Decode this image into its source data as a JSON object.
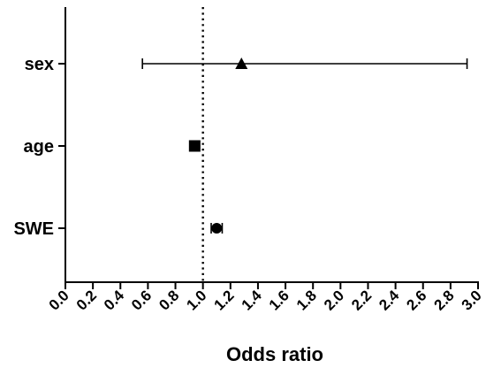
{
  "chart_data": {
    "type": "forest",
    "title": "",
    "xlabel": "Odds ratio",
    "ylabel": "",
    "xlim": [
      0.0,
      3.0
    ],
    "x_tick_step": 0.2,
    "x_tick_labels": [
      "0.0",
      "0.2",
      "0.4",
      "0.6",
      "0.8",
      "1.0",
      "1.2",
      "1.4",
      "1.6",
      "1.8",
      "2.0",
      "2.2",
      "2.4",
      "2.6",
      "2.8",
      "3.0"
    ],
    "reference_line": 1.0,
    "grid": false,
    "legend": "none",
    "categories": [
      "sex",
      "age",
      "SWE"
    ],
    "points": [
      {
        "label": "sex",
        "estimate": 1.28,
        "lower": 0.56,
        "upper": 2.92,
        "marker": "triangle"
      },
      {
        "label": "age",
        "estimate": 0.94,
        "lower": 0.92,
        "upper": 0.96,
        "marker": "square"
      },
      {
        "label": "SWE",
        "estimate": 1.1,
        "lower": 1.06,
        "upper": 1.14,
        "marker": "circle"
      }
    ],
    "colors": {
      "marks": "#000000",
      "background": "#ffffff"
    }
  }
}
